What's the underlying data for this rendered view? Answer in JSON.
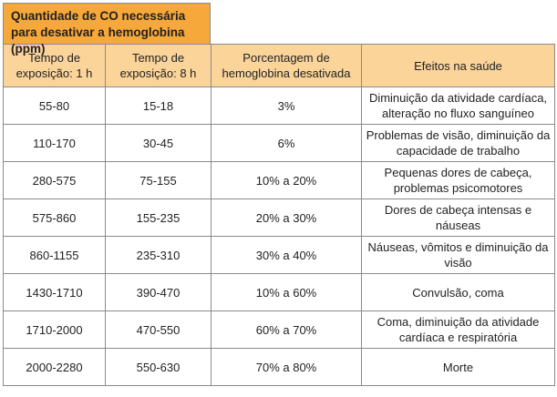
{
  "title": "Quantidade de CO necessária para desativar a hemoglobina (ppm)",
  "headers": [
    "Tempo de exposição: 1 h",
    "Tempo de exposição: 8 h",
    "Porcentagem de hemoglobina desativada",
    "Efeitos na saúde"
  ],
  "rows": [
    [
      "55-80",
      "15-18",
      "3%",
      "Diminuição da atividade cardíaca, alteração no fluxo sanguíneo"
    ],
    [
      "110-170",
      "30-45",
      "6%",
      "Problemas de visão, diminuição da capacidade de trabalho"
    ],
    [
      "280-575",
      "75-155",
      "10% a 20%",
      "Pequenas dores de cabeça, problemas psicomotores"
    ],
    [
      "575-860",
      "155-235",
      "20% a 30%",
      "Dores de cabeça intensas e náuseas"
    ],
    [
      "860-1155",
      "235-310",
      "30% a 40%",
      "Náuseas, vômitos e diminuição da visão"
    ],
    [
      "1430-1710",
      "390-470",
      "10% a 60%",
      "Convulsão, coma"
    ],
    [
      "1710-2000",
      "470-550",
      "60% a 70%",
      "Coma, diminuição da atividade cardíaca e respiratória"
    ],
    [
      "2000-2280",
      "550-630",
      "70% a 80%",
      "Morte"
    ]
  ],
  "colors": {
    "caption_bg": "#f7a83a",
    "header_bg": "#fbd49a",
    "border": "#8a8a8a"
  }
}
